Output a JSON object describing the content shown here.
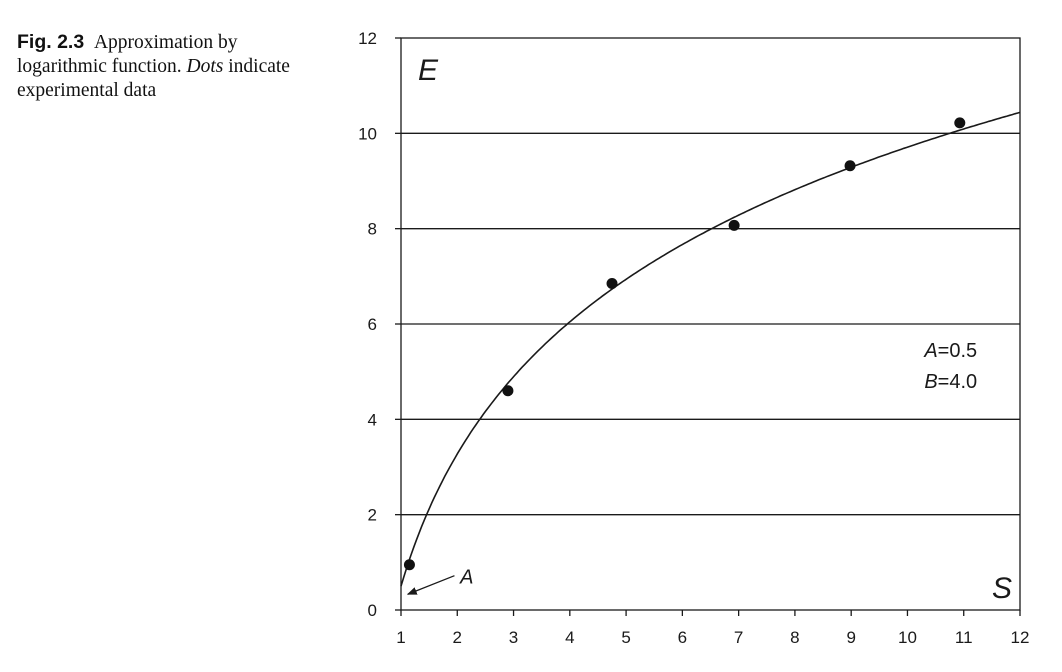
{
  "caption": {
    "label": "Fig. 2.3",
    "text_1": "Approximation by logarithmic function. ",
    "text_italic": "Dots",
    "text_2": " indicate experimental data"
  },
  "chart_data": {
    "type": "scatter",
    "xlabel": "S",
    "ylabel": "E",
    "xlim": [
      1,
      12
    ],
    "ylim": [
      0,
      12
    ],
    "xticks": [
      1,
      2,
      3,
      4,
      5,
      6,
      7,
      8,
      9,
      10,
      11,
      12
    ],
    "yticks": [
      0,
      2,
      4,
      6,
      8,
      10,
      12
    ],
    "grid": "horizontal",
    "points": {
      "x": [
        1.15,
        2.9,
        4.75,
        6.92,
        8.98,
        10.93
      ],
      "y": [
        0.95,
        4.6,
        6.85,
        8.07,
        9.32,
        10.22
      ]
    },
    "fit": {
      "function": "E = A + B·ln(S)",
      "A": 0.5,
      "B": 4.0
    },
    "annotations": {
      "params_A_name": "A",
      "params_A_value": "=0.5",
      "params_B_name": "B",
      "params_B_value": "=4.0",
      "intercept_label": "A"
    }
  }
}
